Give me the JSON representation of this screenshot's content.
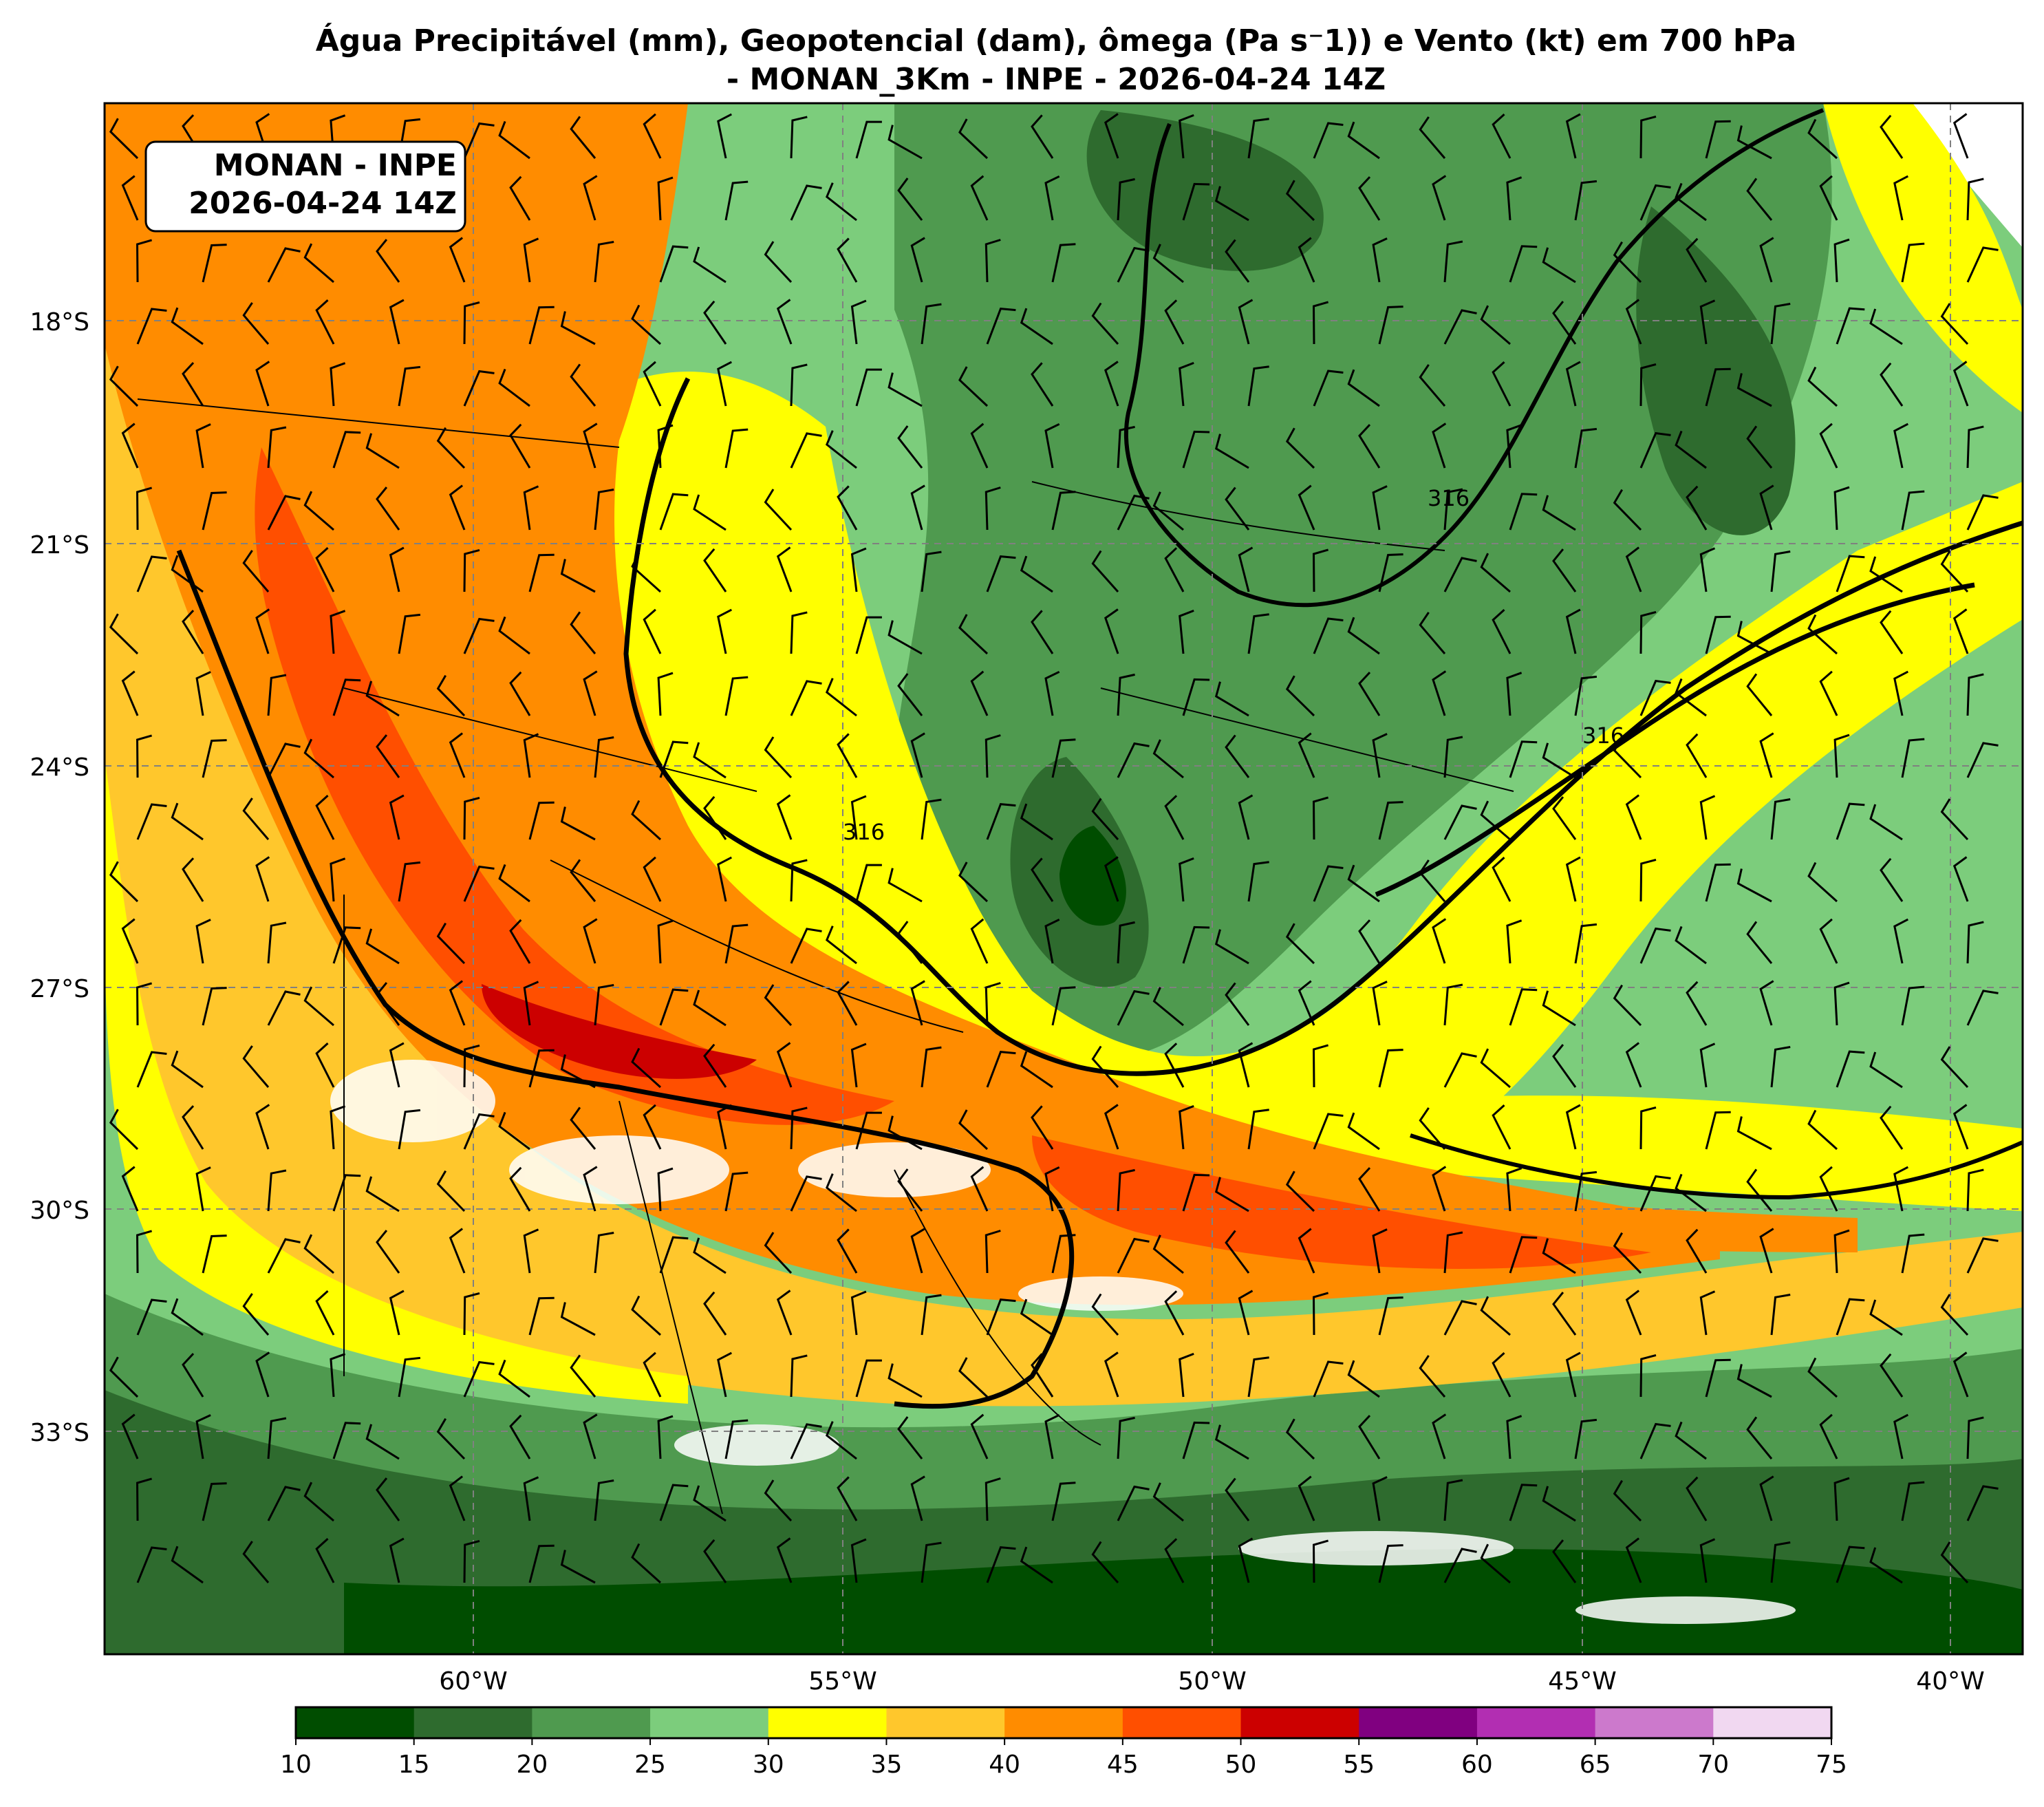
{
  "title": {
    "line1": "Água Precipitável (mm), Geopotencial (dam), ômega (Pa s⁻1)) e Vento (kt) em 700 hPa",
    "line2": "- MONAN_3Km - INPE - 2026-04-24 14Z"
  },
  "info_box": {
    "line1": "MONAN - INPE",
    "line2": "2026-04-24 14Z"
  },
  "map": {
    "lat_ticks": [
      "18°S",
      "21°S",
      "24°S",
      "27°S",
      "30°S",
      "33°S"
    ],
    "lon_ticks": [
      "60°W",
      "55°W",
      "50°W",
      "45°W",
      "40°W"
    ],
    "contour_labels": [
      "316",
      "316",
      "316"
    ]
  },
  "colorbar": {
    "ticks": [
      "10",
      "15",
      "20",
      "25",
      "30",
      "35",
      "40",
      "45",
      "50",
      "55",
      "60",
      "65",
      "70",
      "75"
    ],
    "colors": [
      "#004d00",
      "#2e6b2e",
      "#4f9a4f",
      "#7ccd7c",
      "#ffff00",
      "#ffc72c",
      "#ff8c00",
      "#ff4f00",
      "#cc0000",
      "#800080",
      "#b22eb2",
      "#cc79cc",
      "#f1d8f1"
    ]
  }
}
